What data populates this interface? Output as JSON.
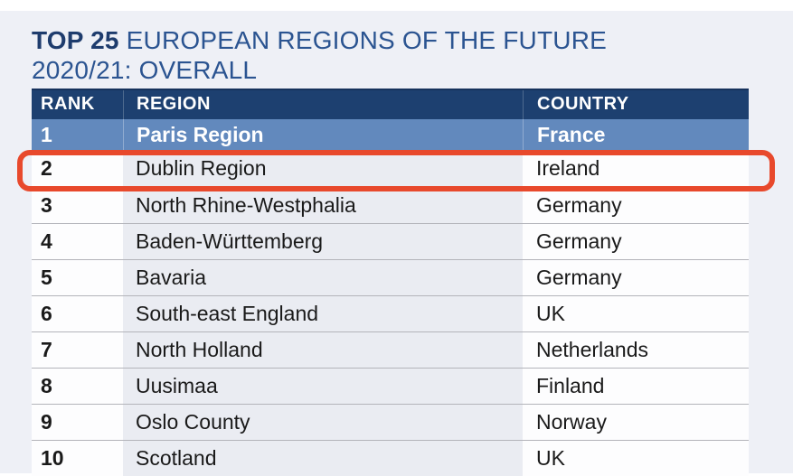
{
  "title": {
    "prefix": "TOP 25",
    "rest": "EUROPEAN REGIONS OF THE FUTURE",
    "line2": "2020/21: OVERALL"
  },
  "table": {
    "headers": [
      "RANK",
      "REGION",
      "COUNTRY"
    ],
    "rows": [
      {
        "rank": "1",
        "region": "Paris Region",
        "country": "France"
      },
      {
        "rank": "2",
        "region": "Dublin Region",
        "country": "Ireland"
      },
      {
        "rank": "3",
        "region": "North Rhine-Westphalia",
        "country": "Germany"
      },
      {
        "rank": "4",
        "region": "Baden-Württemberg",
        "country": "Germany"
      },
      {
        "rank": "5",
        "region": "Bavaria",
        "country": "Germany"
      },
      {
        "rank": "6",
        "region": "South-east England",
        "country": "UK"
      },
      {
        "rank": "7",
        "region": "North Holland",
        "country": "Netherlands"
      },
      {
        "rank": "8",
        "region": "Uusimaa",
        "country": "Finland"
      },
      {
        "rank": "9",
        "region": "Oslo County",
        "country": "Norway"
      },
      {
        "rank": "10",
        "region": "Scotland",
        "country": "UK"
      }
    ]
  },
  "annotation": {
    "highlighted_rank": "2",
    "highlighted_region": "Dublin Region",
    "highlighted_country": "Ireland",
    "color": "#e8492c"
  },
  "colors": {
    "page_bg": "#eef0f6",
    "header_bg": "#1d4070",
    "first_row_bg": "#6289bd",
    "region_column_bg": "#eaecf2",
    "title_dark_navy": "#1e3c6d",
    "title_blue": "#2b5491",
    "divider": "#b3b4ba",
    "highlight": "#e8492c"
  }
}
